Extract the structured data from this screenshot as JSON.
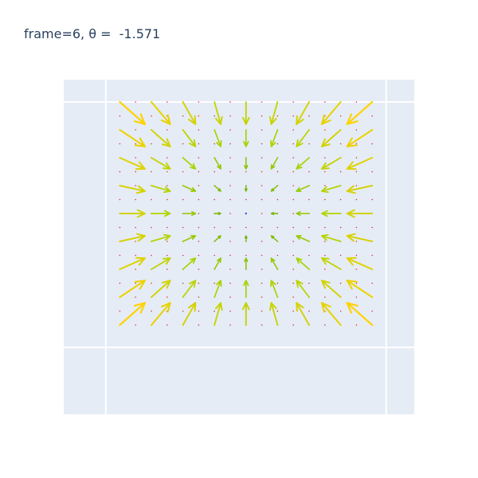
{
  "chart_data": {
    "type": "quiver",
    "title": "frame=6, θ =  -1.571",
    "xlabel": "",
    "ylabel": "",
    "xlim": [
      -0.4,
      2.1
    ],
    "ylim": [
      -0.4,
      1.1
    ],
    "grid": true,
    "grid_x": [
      -0.1,
      1.9
    ],
    "grid_y": [
      1.0,
      -0.1
    ],
    "field": {
      "x_range": [
        0.0,
        1.8
      ],
      "y_range": [
        0.0,
        1.0
      ],
      "nx": 9,
      "ny": 9,
      "center": [
        0.9,
        0.5
      ],
      "direction": "inward"
    },
    "colors": {
      "plot_bg": "#E5ECF6",
      "grid": "#ffffff",
      "strong": "#FFD200",
      "medium": "#A6D300",
      "weak": "#5BA300",
      "dot_red": "#E0302A",
      "dot_blue": "#3355CC"
    }
  }
}
